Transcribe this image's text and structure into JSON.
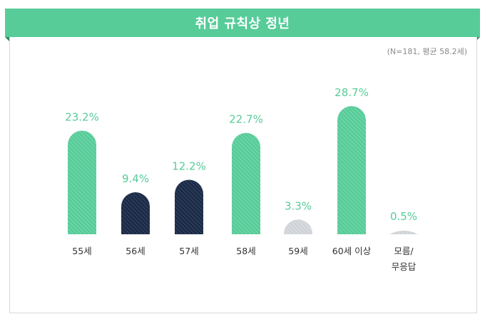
{
  "title": "취업 규칙상 정년",
  "note": "(N=181, 평균 58.2세)",
  "colors": {
    "header": "#57cc99",
    "green_bar": "#57cc99",
    "navy_bar": "#1c2b45",
    "gray_bar": "#cfd3d8",
    "green_text": "#57cc99",
    "navy_text": "#57cc99"
  },
  "chart_data": {
    "type": "bar",
    "title": "취업 규칙상 정년",
    "categories": [
      "55세",
      "56세",
      "57세",
      "58세",
      "59세",
      "60세 이상",
      "모름/\n무응답"
    ],
    "values": [
      23.2,
      9.4,
      12.2,
      22.7,
      3.3,
      28.7,
      0.5
    ],
    "value_labels": [
      "23.2%",
      "9.4%",
      "12.2%",
      "22.7%",
      "3.3%",
      "28.7%",
      "0.5%"
    ],
    "bar_colors": [
      "green",
      "navy",
      "navy",
      "green",
      "gray",
      "green",
      "gray"
    ],
    "xlabel": "",
    "ylabel": "",
    "unit": "%",
    "grid": false,
    "legend": "none"
  }
}
